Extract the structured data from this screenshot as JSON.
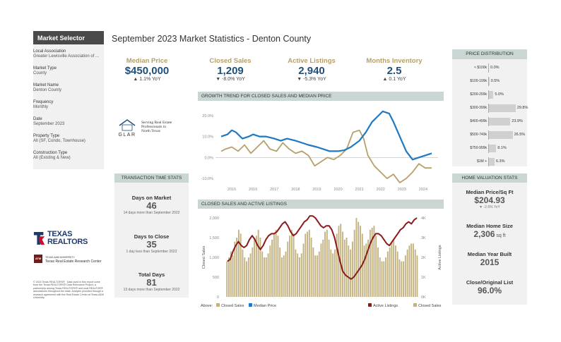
{
  "page_title": "September 2023 Market Statistics - Denton County",
  "sidebar": {
    "header": "Market Selector",
    "fields": [
      {
        "label": "Local Association",
        "value": "Greater Lewisville Association of ..."
      },
      {
        "label": "Market Type",
        "value": "County"
      },
      {
        "label": "Market Name",
        "value": "Denton County"
      },
      {
        "label": "Frequency",
        "value": "Monthly"
      },
      {
        "label": "Date",
        "value": "September 2023"
      },
      {
        "label": "Property Type",
        "value": "All (SF, Condo, Townhouse)"
      },
      {
        "label": "Construction Type",
        "value": "All (Existing & New)"
      }
    ]
  },
  "kpis": [
    {
      "label": "Median Price",
      "value": "$450,000",
      "change": "▲ 1.1% YoY"
    },
    {
      "label": "Closed Sales",
      "value": "1,209",
      "change": "▼ -8.0% YoY"
    },
    {
      "label": "Active Listings",
      "value": "2,940",
      "change": "▼ -5.3% YoY"
    },
    {
      "label": "Months Inventory",
      "value": "2.5",
      "change": "▲ 0.1 YoY"
    }
  ],
  "glar": {
    "line1": "Serving Real Estate",
    "line2": "Professionals in",
    "line3": "North Texas",
    "mark": "GLAR"
  },
  "transaction": {
    "header": "TRANSACTION TIME STATS",
    "blocks": [
      {
        "label": "Days on Market",
        "value": "46",
        "sub": "14 days more than September 2022"
      },
      {
        "label": "Days to Close",
        "value": "35",
        "sub": "1 day less than September 2022"
      },
      {
        "label": "Total Days",
        "value": "81",
        "sub": "13 days more than September 2022"
      }
    ]
  },
  "texas_realtors": {
    "line1": "TEXAS",
    "line2": "REALTORS",
    "tamu_mark": "ATM",
    "tamu_line1": "TEXAS A&M UNIVERSITY",
    "tamu_line2": "Texas Real Estate Research Center"
  },
  "copyright": "© 2024 Texas REALTORS® · Data used in this report come from the Texas REALTORS® Data Relevance Project, a partnership among Texas REALTORS® and local REALTOR® associations throughout the state. Analysis provided through a research agreement with the Real Estate Center at Texas A&M University.",
  "price_distribution": {
    "header": "PRICE DISTRIBUTION",
    "rows": [
      {
        "label": "< $100k",
        "value": "0.0%",
        "pct": 0.0
      },
      {
        "label": "$100-199k",
        "value": "0.5%",
        "pct": 0.5
      },
      {
        "label": "$200-299k",
        "value": "5.0%",
        "pct": 5.0
      },
      {
        "label": "$300-399k",
        "value": "29.8%",
        "pct": 29.8
      },
      {
        "label": "$400-499k",
        "value": "23.9%",
        "pct": 23.9
      },
      {
        "label": "$500-749k",
        "value": "26.5%",
        "pct": 26.5
      },
      {
        "label": "$750-999k",
        "value": "8.1%",
        "pct": 8.1
      },
      {
        "label": "$1M +",
        "value": "6.3%",
        "pct": 6.3
      }
    ]
  },
  "home_valuation": {
    "header": "HOME VALUATION STATS",
    "items": [
      {
        "label": "Median Price/Sq Ft",
        "value": "$204.93",
        "unit": "",
        "sub": "▼ -2.6% YoY"
      },
      {
        "label": "Median Home Size",
        "value": "2,306",
        "unit": " sq ft",
        "sub": ""
      },
      {
        "label": "Median Year Built",
        "value": "2015",
        "unit": "",
        "sub": ""
      },
      {
        "label": "Close/Original List",
        "value": "96.0%",
        "unit": "",
        "sub": ""
      }
    ]
  },
  "colors": {
    "gold": "#b5a06a",
    "blue": "#1f78c1",
    "maroon": "#8b1a1a",
    "bar": "#c2b280",
    "navy": "#1f4e79"
  },
  "chart_data": [
    {
      "type": "line",
      "title": "GROWTH TREND FOR CLOSED SALES AND MEDIAN PRICE",
      "yticks": [
        "20.0%",
        "10.0%",
        "0.0%",
        "-10.0%"
      ],
      "ylim": [
        -12,
        24
      ],
      "xticks": [
        "2015",
        "2016",
        "2017",
        "2018",
        "2019",
        "2020",
        "2021",
        "2022",
        "2023",
        "2024"
      ],
      "series": [
        {
          "name": "Median Price",
          "color": "#1f78c1",
          "x": [
            2014.5,
            2014.8,
            2015.0,
            2015.2,
            2015.5,
            2015.8,
            2016.0,
            2016.3,
            2016.6,
            2017.0,
            2017.3,
            2017.6,
            2018.0,
            2018.3,
            2018.6,
            2019.0,
            2019.3,
            2019.6,
            2020.0,
            2020.3,
            2020.6,
            2021.0,
            2021.3,
            2021.6,
            2021.9,
            2022.1,
            2022.4,
            2022.6,
            2022.9,
            2023.2,
            2023.5,
            2023.8,
            2024.1,
            2024.4
          ],
          "y": [
            10,
            11,
            13,
            12,
            9,
            10,
            11,
            10,
            10,
            9,
            8,
            9,
            8,
            7,
            6,
            5,
            4,
            3,
            3,
            3.5,
            5,
            8,
            12,
            17,
            20,
            22,
            21,
            17,
            10,
            3,
            -1,
            0,
            1,
            2
          ]
        },
        {
          "name": "Closed Sales",
          "color": "#b5a06a",
          "x": [
            2014.5,
            2014.7,
            2015.0,
            2015.3,
            2015.6,
            2015.9,
            2016.2,
            2016.5,
            2016.8,
            2017.1,
            2017.4,
            2017.7,
            2018.0,
            2018.3,
            2018.6,
            2018.9,
            2019.2,
            2019.5,
            2019.8,
            2020.1,
            2020.4,
            2020.7,
            2021.0,
            2021.2,
            2021.4,
            2021.7,
            2022.0,
            2022.3,
            2022.6,
            2022.9,
            2023.2,
            2023.5,
            2023.8,
            2024.1,
            2024.4
          ],
          "y": [
            3,
            4,
            5,
            3,
            6,
            2,
            5,
            8,
            4,
            3,
            7,
            4,
            2,
            3,
            1,
            -4,
            -2,
            0,
            -1,
            1,
            4,
            12,
            13,
            9,
            1,
            -4,
            -7,
            -10,
            -8,
            -12,
            -10,
            -7,
            -3,
            -5,
            -5
          ]
        }
      ]
    },
    {
      "type": "bar",
      "title": "CLOSED SALES AND ACTIVE LISTINGS",
      "ylabel": "Closed Sales",
      "y2label": "Active Listings",
      "yticks": [
        "2,000",
        "1,500",
        "1,000",
        "500",
        "0"
      ],
      "y2ticks": [
        "4K",
        "3K",
        "2K",
        "1K",
        "0K"
      ],
      "ylim": [
        0,
        2000
      ],
      "y2lim": [
        0,
        4000
      ],
      "legend_left": {
        "prefix": "Above:",
        "items": [
          "Closed Sales",
          "Median Price"
        ]
      },
      "legend_right": [
        "Active Listings",
        "Closed Sales"
      ],
      "bars": [
        900,
        1000,
        1150,
        1050,
        1400,
        1500,
        1700,
        1600,
        1200,
        1000,
        900,
        1000,
        1100,
        1250,
        1500,
        1550,
        1700,
        1500,
        1150,
        1000,
        1000,
        1100,
        1300,
        1450,
        1600,
        1700,
        1550,
        1250,
        1000,
        1050,
        1150,
        1400,
        1550,
        1700,
        1600,
        1200,
        1100,
        1000,
        1100,
        1350,
        1600,
        1650,
        1700,
        1500,
        1250,
        1050,
        1050,
        1150,
        1350,
        1450,
        1650,
        1700,
        1450,
        1200,
        1100,
        1200,
        1600,
        1800,
        1850,
        1650,
        1450,
        1500,
        1300,
        1200,
        1400,
        1700,
        2000,
        1900,
        1800,
        1600,
        1300,
        1350,
        1450,
        1700,
        1750,
        1800,
        1550,
        1250,
        1000,
        900,
        900,
        1000,
        1150,
        1250,
        1400,
        1450,
        1300,
        1150,
        950,
        900,
        900,
        1050,
        1200,
        1300,
        1350,
        1350,
        1200,
        1050
      ],
      "line": [
        1800,
        1900,
        2300,
        2600,
        2800,
        2600,
        2500,
        2600,
        2900,
        3100,
        2900,
        2600,
        2400,
        2600,
        2900,
        3100,
        3200,
        3200,
        3300,
        3500,
        3700,
        3800,
        3600,
        3300,
        3100,
        3200,
        3400,
        3600,
        3800,
        3900,
        4100,
        4100,
        4000,
        3800,
        3600,
        3500,
        3600,
        3600,
        3400,
        3000,
        2400,
        1800,
        1300,
        1100,
        1000,
        900,
        1000,
        1200,
        1400,
        1600,
        1900,
        2300,
        2700,
        3000,
        3200,
        3200,
        3100,
        2900,
        2700,
        2600,
        2800,
        3000,
        3200,
        3400,
        3500,
        3700,
        3800,
        3700,
        3900,
        4000
      ]
    }
  ]
}
